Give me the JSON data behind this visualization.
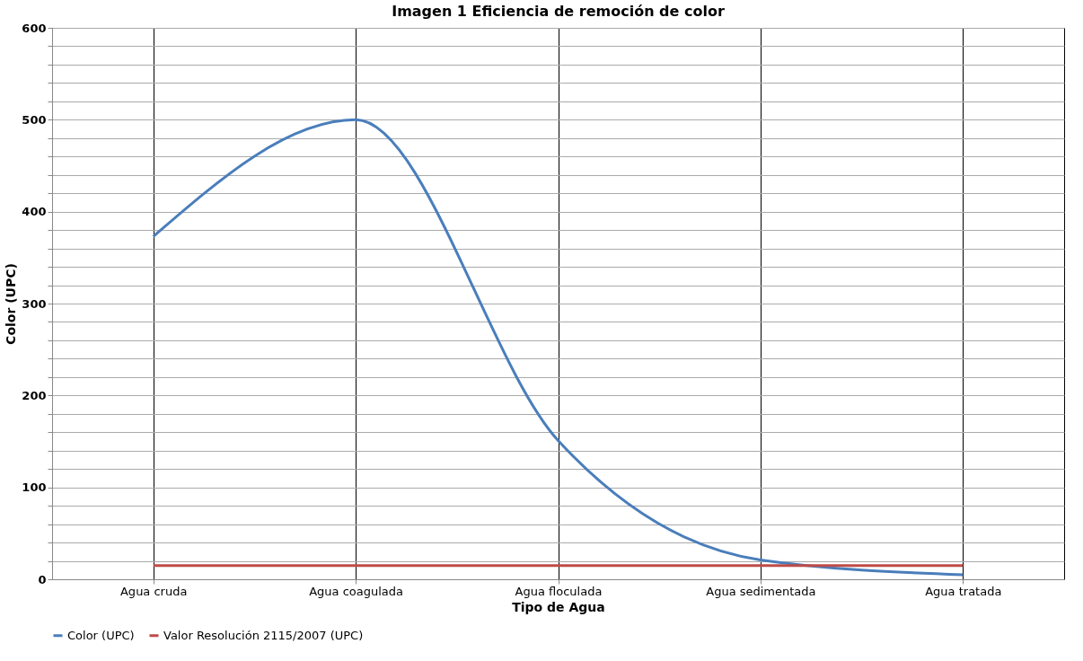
{
  "chart_data": {
    "type": "line",
    "title": "Imagen 1 Eficiencia de remoción de color",
    "xlabel": "Tipo de Agua",
    "ylabel": "Color (UPC)",
    "categories": [
      "Agua cruda",
      "Agua coagulada",
      "Agua floculada",
      "Agua sedimentada",
      "Agua tratada"
    ],
    "series": [
      {
        "name": "Color (UPC)",
        "color": "#4a7ebb",
        "values": [
          373,
          500,
          151,
          21,
          5
        ]
      },
      {
        "name": "Valor Resolución 2115/2007 (UPC)",
        "color": "#be4b48",
        "values": [
          15,
          15,
          15,
          15,
          15
        ]
      }
    ],
    "ylim": [
      0,
      600
    ],
    "yticks": [
      0,
      {
        "value": 20,
        "label": null
      },
      {
        "value": 40,
        "label": null
      },
      {
        "value": 60,
        "label": null
      },
      {
        "value": 80,
        "label": null
      },
      100,
      {
        "value": 120,
        "label": null
      },
      {
        "value": 140,
        "label": null
      },
      {
        "value": 160,
        "label": null
      },
      {
        "value": 180,
        "label": null
      },
      200,
      {
        "value": 220,
        "label": null
      },
      {
        "value": 240,
        "label": null
      },
      {
        "value": 260,
        "label": null
      },
      {
        "value": 280,
        "label": null
      },
      300,
      {
        "value": 320,
        "label": null
      },
      {
        "value": 340,
        "label": null
      },
      {
        "value": 360,
        "label": null
      },
      {
        "value": 380,
        "label": null
      },
      400,
      {
        "value": 420,
        "label": null
      },
      {
        "value": 440,
        "label": null
      },
      {
        "value": 460,
        "label": null
      },
      {
        "value": 480,
        "label": null
      },
      500,
      {
        "value": 520,
        "label": null
      },
      {
        "value": 540,
        "label": null
      },
      {
        "value": 560,
        "label": null
      },
      {
        "value": 580,
        "label": null
      },
      600
    ],
    "grid": true,
    "legend": "bottom",
    "marker": "none",
    "line_style": "solid"
  }
}
